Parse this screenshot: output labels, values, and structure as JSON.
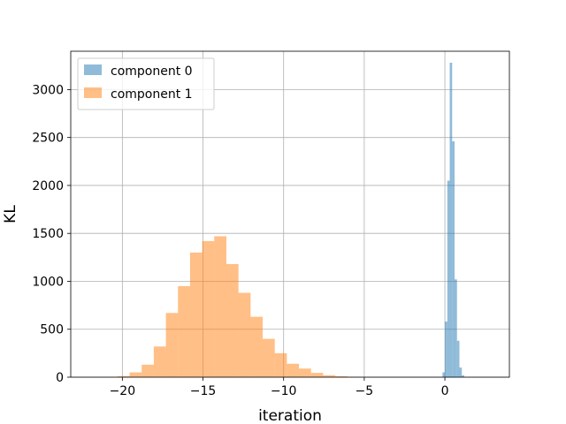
{
  "chart_data": {
    "type": "histogram",
    "xlabel": "iteration",
    "ylabel": "KL",
    "xlim": [
      -23.2,
      4.0
    ],
    "ylim": [
      0,
      3400
    ],
    "x_ticks": [
      -20,
      -15,
      -10,
      -5,
      0
    ],
    "x_tick_labels": [
      "−20",
      "−15",
      "−10",
      "−5",
      "0"
    ],
    "y_ticks": [
      0,
      500,
      1000,
      1500,
      2000,
      2500,
      3000
    ],
    "y_tick_labels": [
      "0",
      "500",
      "1000",
      "1500",
      "2000",
      "2500",
      "3000"
    ],
    "grid": true,
    "legend_position": "top-left",
    "series": [
      {
        "name": "component 0",
        "color": "#1f77b4",
        "alpha": 0.5,
        "bins": [
          {
            "x0": -0.15,
            "x1": 0.0,
            "count": 50
          },
          {
            "x0": 0.0,
            "x1": 0.15,
            "count": 580
          },
          {
            "x0": 0.15,
            "x1": 0.3,
            "count": 2050
          },
          {
            "x0": 0.3,
            "x1": 0.45,
            "count": 3280
          },
          {
            "x0": 0.45,
            "x1": 0.6,
            "count": 2460
          },
          {
            "x0": 0.6,
            "x1": 0.75,
            "count": 1020
          },
          {
            "x0": 0.75,
            "x1": 0.9,
            "count": 380
          },
          {
            "x0": 0.9,
            "x1": 1.05,
            "count": 100
          },
          {
            "x0": 1.05,
            "x1": 1.2,
            "count": 20
          }
        ]
      },
      {
        "name": "component 1",
        "color": "#ff7f0e",
        "alpha": 0.5,
        "bins": [
          {
            "x0": -20.3,
            "x1": -19.55,
            "count": 10
          },
          {
            "x0": -19.55,
            "x1": -18.8,
            "count": 50
          },
          {
            "x0": -18.8,
            "x1": -18.05,
            "count": 130
          },
          {
            "x0": -18.05,
            "x1": -17.3,
            "count": 320
          },
          {
            "x0": -17.3,
            "x1": -16.55,
            "count": 670
          },
          {
            "x0": -16.55,
            "x1": -15.8,
            "count": 950
          },
          {
            "x0": -15.8,
            "x1": -15.05,
            "count": 1300
          },
          {
            "x0": -15.05,
            "x1": -14.3,
            "count": 1420
          },
          {
            "x0": -14.3,
            "x1": -13.55,
            "count": 1470
          },
          {
            "x0": -13.55,
            "x1": -12.8,
            "count": 1180
          },
          {
            "x0": -12.8,
            "x1": -12.05,
            "count": 880
          },
          {
            "x0": -12.05,
            "x1": -11.3,
            "count": 630
          },
          {
            "x0": -11.3,
            "x1": -10.55,
            "count": 400
          },
          {
            "x0": -10.55,
            "x1": -9.8,
            "count": 250
          },
          {
            "x0": -9.8,
            "x1": -9.05,
            "count": 140
          },
          {
            "x0": -9.05,
            "x1": -8.3,
            "count": 90
          },
          {
            "x0": -8.3,
            "x1": -7.55,
            "count": 45
          },
          {
            "x0": -7.55,
            "x1": -6.8,
            "count": 20
          },
          {
            "x0": -6.8,
            "x1": -6.05,
            "count": 10
          },
          {
            "x0": -6.05,
            "x1": -5.3,
            "count": 5
          }
        ]
      }
    ]
  }
}
